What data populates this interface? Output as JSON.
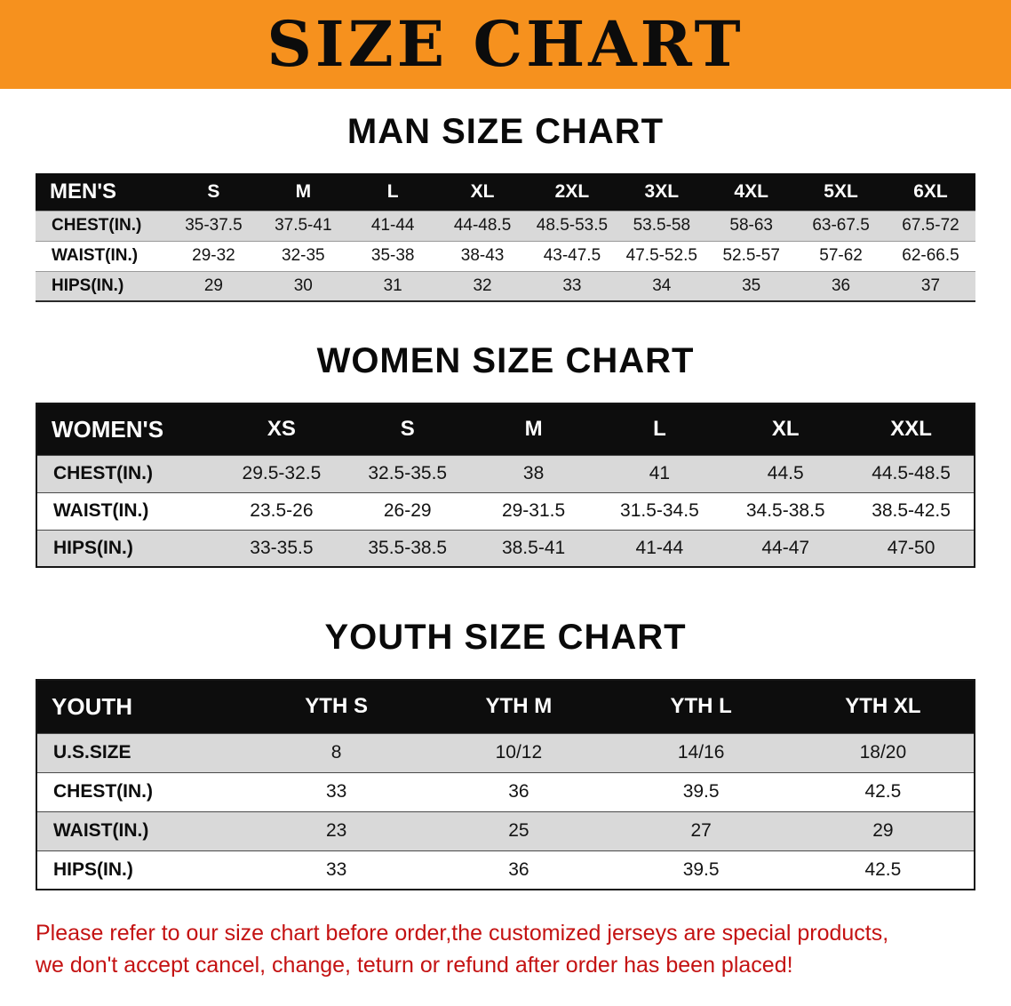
{
  "banner": {
    "title": "SIZE CHART",
    "bg_color": "#f6911e",
    "text_color": "#0c0c0c"
  },
  "colors": {
    "table_header_bg": "#0d0d0d",
    "table_header_text": "#ffffff",
    "row_stripe_bg": "#d9d9d9",
    "footer_text": "#c41212"
  },
  "footer": {
    "line1": "Please refer to our size chart before order,the customized jerseys are special products,",
    "line2": "we don't accept cancel, change, teturn or refund after order has been placed!"
  },
  "chart_data": [
    {
      "type": "table",
      "title": "MAN SIZE CHART",
      "columns": [
        "MEN'S",
        "S",
        "M",
        "L",
        "XL",
        "2XL",
        "3XL",
        "4XL",
        "5XL",
        "6XL"
      ],
      "rows": [
        [
          "CHEST(IN.)",
          "35-37.5",
          "37.5-41",
          "41-44",
          "44-48.5",
          "48.5-53.5",
          "53.5-58",
          "58-63",
          "63-67.5",
          "67.5-72"
        ],
        [
          "WAIST(IN.)",
          "29-32",
          "32-35",
          "35-38",
          "38-43",
          "43-47.5",
          "47.5-52.5",
          "52.5-57",
          "57-62",
          "62-66.5"
        ],
        [
          "HIPS(IN.)",
          "29",
          "30",
          "31",
          "32",
          "33",
          "34",
          "35",
          "36",
          "37"
        ]
      ]
    },
    {
      "type": "table",
      "title": "WOMEN SIZE CHART",
      "columns": [
        "WOMEN'S",
        "XS",
        "S",
        "M",
        "L",
        "XL",
        "XXL"
      ],
      "rows": [
        [
          "CHEST(IN.)",
          "29.5-32.5",
          "32.5-35.5",
          "38",
          "41",
          "44.5",
          "44.5-48.5"
        ],
        [
          "WAIST(IN.)",
          "23.5-26",
          "26-29",
          "29-31.5",
          "31.5-34.5",
          "34.5-38.5",
          "38.5-42.5"
        ],
        [
          "HIPS(IN.)",
          "33-35.5",
          "35.5-38.5",
          "38.5-41",
          "41-44",
          "44-47",
          "47-50"
        ]
      ]
    },
    {
      "type": "table",
      "title": "YOUTH SIZE CHART",
      "columns": [
        "YOUTH",
        "YTH S",
        "YTH M",
        "YTH L",
        "YTH XL"
      ],
      "rows": [
        [
          "U.S.SIZE",
          "8",
          "10/12",
          "14/16",
          "18/20"
        ],
        [
          "CHEST(IN.)",
          "33",
          "36",
          "39.5",
          "42.5"
        ],
        [
          "WAIST(IN.)",
          "23",
          "25",
          "27",
          "29"
        ],
        [
          "HIPS(IN.)",
          "33",
          "36",
          "39.5",
          "42.5"
        ]
      ]
    }
  ]
}
